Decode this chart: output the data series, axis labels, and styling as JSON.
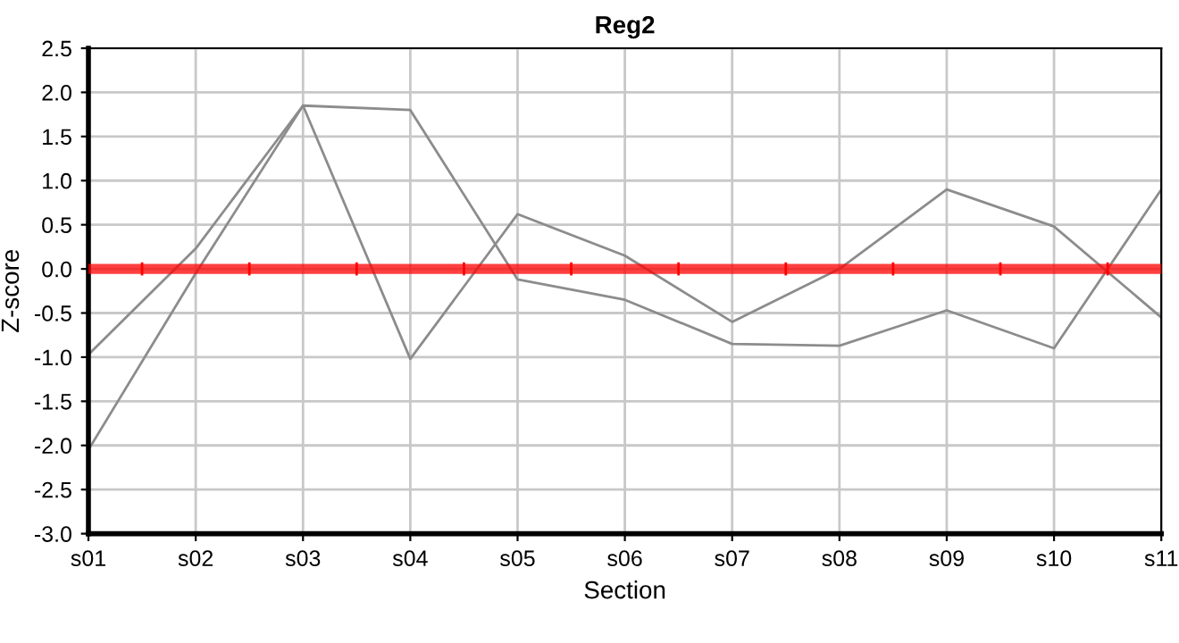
{
  "chart_data": {
    "type": "line",
    "title": "Reg2",
    "xlabel": "Section",
    "ylabel": "Z-score",
    "categories": [
      "s01",
      "s02",
      "s03",
      "s04",
      "s05",
      "s06",
      "s07",
      "s08",
      "s09",
      "s10",
      "s11"
    ],
    "series": [
      {
        "color": "#8c8c8c",
        "values": [
          -0.97,
          0.23,
          1.85,
          -1.02,
          0.62,
          0.15,
          -0.6,
          0.0,
          0.9,
          0.48,
          -0.55
        ]
      },
      {
        "color": "#8c8c8c",
        "values": [
          -2.05,
          -0.05,
          1.85,
          1.8,
          -0.12,
          -0.35,
          -0.85,
          -0.87,
          -0.47,
          -0.9,
          0.9
        ]
      }
    ],
    "ylim": [
      -3.0,
      2.5
    ],
    "yticks": [
      {
        "value": -3,
        "label": "-3.0"
      },
      {
        "value": -2.5,
        "label": "-2.5"
      },
      {
        "value": -2,
        "label": "-2.0"
      },
      {
        "value": -1.5,
        "label": "-1.5"
      },
      {
        "value": -1,
        "label": "-1.0"
      },
      {
        "value": -0.5,
        "label": "-0.5"
      },
      {
        "value": 0,
        "label": "0.0"
      },
      {
        "value": 0.5,
        "label": "0.5"
      },
      {
        "value": 1,
        "label": "1.0"
      },
      {
        "value": 1.5,
        "label": "1.5"
      },
      {
        "value": 2,
        "label": "2.0"
      },
      {
        "value": 2.5,
        "label": "2.5"
      }
    ],
    "ref_lines": [
      {
        "axis": "y",
        "value": 0,
        "color": "#ff0000"
      }
    ],
    "grid": true,
    "legend": false
  }
}
